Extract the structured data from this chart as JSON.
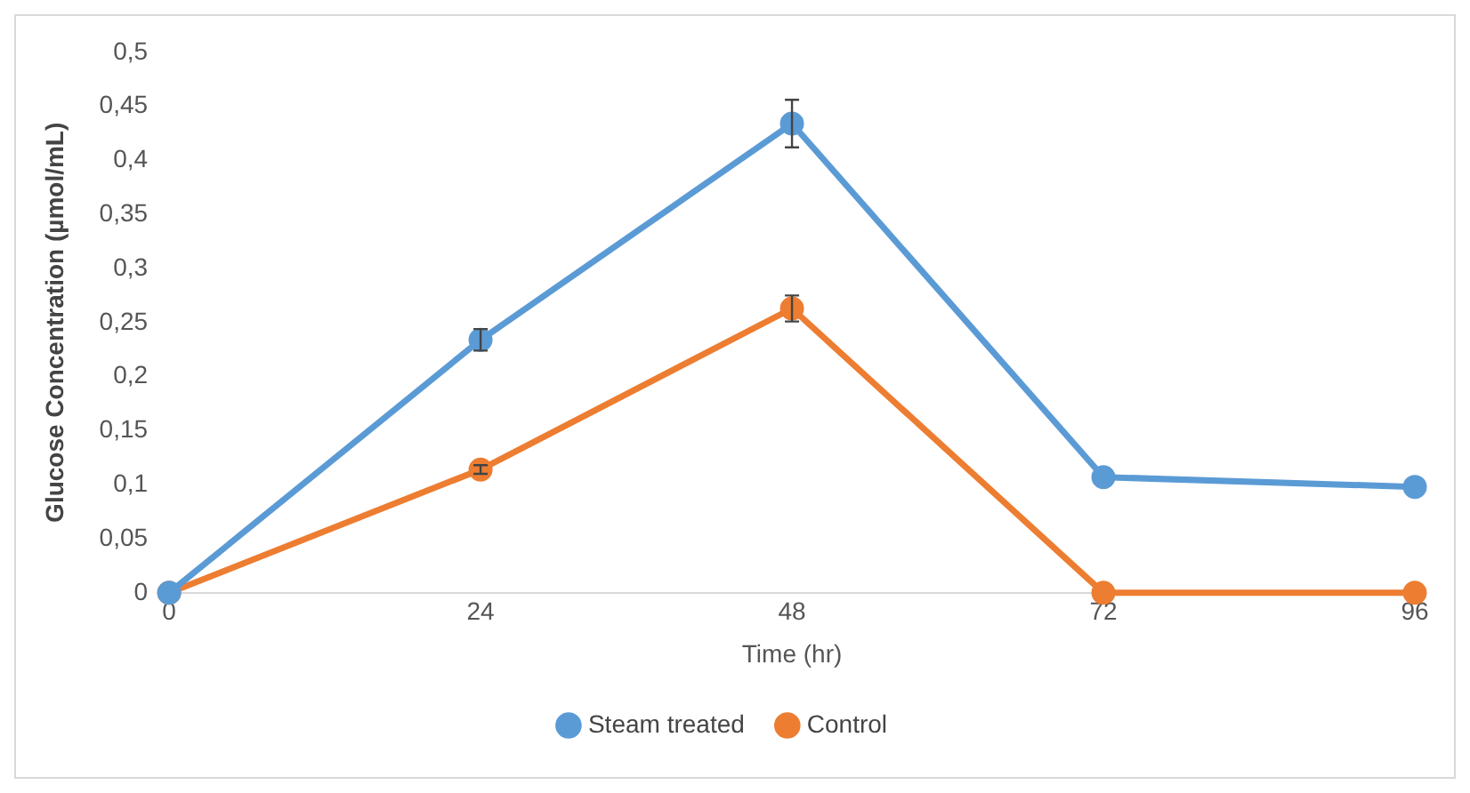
{
  "chart_data": {
    "type": "line",
    "xlabel": "Time (hr)",
    "ylabel": "Glucose Concentration (µmol/mL)",
    "x": [
      0,
      24,
      48,
      72,
      96
    ],
    "xlim": [
      0,
      96
    ],
    "xticks": [
      0,
      24,
      48,
      72,
      96
    ],
    "ylim": [
      0,
      0.5
    ],
    "yticks": [
      0,
      {
        "value": 0.05,
        "label": "0,05"
      },
      {
        "value": 0.1,
        "label": "0,1"
      },
      {
        "value": 0.15,
        "label": "0,15"
      },
      {
        "value": 0.2,
        "label": "0,2"
      },
      {
        "value": 0.25,
        "label": "0,25"
      },
      {
        "value": 0.3,
        "label": "0,3"
      },
      {
        "value": 0.35,
        "label": "0,35"
      },
      {
        "value": 0.4,
        "label": "0,4"
      },
      {
        "value": 0.45,
        "label": "0,45"
      },
      {
        "value": 0.5,
        "label": "0,5"
      }
    ],
    "legend": "bottom",
    "marker": "circle",
    "series": [
      {
        "name": "Steam treated",
        "color": "#5b9bd5",
        "values": [
          0,
          0.234,
          0.434,
          0.107,
          0.098
        ],
        "errors": [
          null,
          0.01,
          0.022,
          null,
          null
        ]
      },
      {
        "name": "Control",
        "color": "#ed7d31",
        "values": [
          0,
          0.114,
          0.263,
          0,
          0
        ],
        "errors": [
          null,
          0.004,
          0.012,
          null,
          null
        ]
      }
    ]
  }
}
